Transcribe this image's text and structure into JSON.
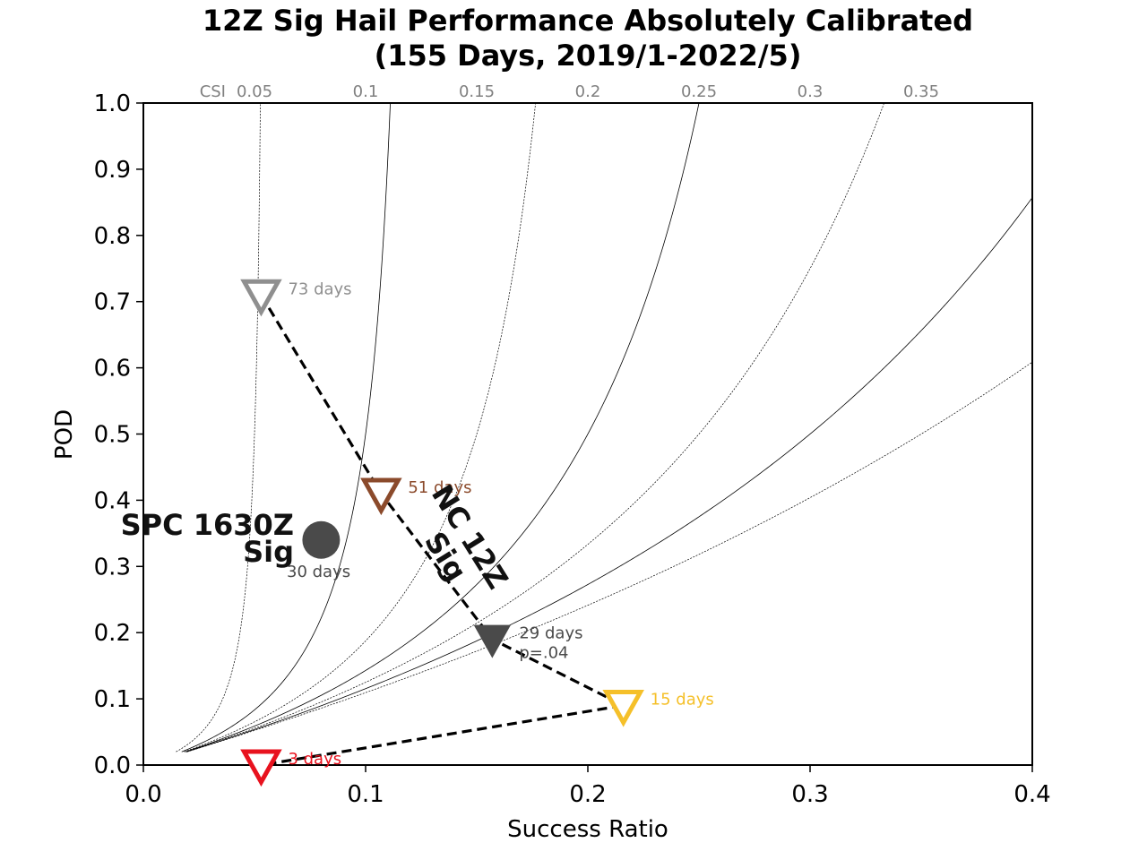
{
  "chart_data": {
    "type": "scatter",
    "title": "12Z Sig Hail Performance Absolutely Calibrated",
    "subtitle": "(155 Days, 2019/1-2022/5)",
    "xlabel": "Success Ratio",
    "ylabel": "POD",
    "xlim": [
      0.0,
      0.4
    ],
    "ylim": [
      0.0,
      1.0
    ],
    "x_ticks": [
      "0.0",
      "0.1",
      "0.2",
      "0.3",
      "0.4"
    ],
    "y_ticks": [
      "0.0",
      "0.1",
      "0.2",
      "0.3",
      "0.4",
      "0.5",
      "0.6",
      "0.7",
      "0.8",
      "0.9",
      "1.0"
    ],
    "csi_label": "CSI",
    "csi_values": [
      0.05,
      0.1,
      0.15,
      0.2,
      0.25,
      0.3,
      0.35
    ],
    "csi_tick_labels": [
      "0.05",
      "0.1",
      "0.15",
      "0.2",
      "0.25",
      "0.3",
      "0.35"
    ],
    "series": [
      {
        "name": "NC 12Z Sig",
        "style": "dashed",
        "color": "#000000",
        "points": [
          {
            "x": 0.053,
            "y": 0.71,
            "days_label": "73 days",
            "extra_label": "",
            "marker": "triangle-down-open",
            "color": "#8f8f8f"
          },
          {
            "x": 0.107,
            "y": 0.41,
            "days_label": "51 days",
            "extra_label": "",
            "marker": "triangle-down-open",
            "color": "#8b4a2b"
          },
          {
            "x": 0.157,
            "y": 0.19,
            "days_label": "29 days",
            "extra_label": "p=.04",
            "marker": "triangle-down-filled",
            "color": "#4a4a4a"
          },
          {
            "x": 0.216,
            "y": 0.09,
            "days_label": "15 days",
            "extra_label": "",
            "marker": "triangle-down-open",
            "color": "#f5c02a"
          },
          {
            "x": 0.053,
            "y": 0.0,
            "days_label": "3 days",
            "extra_label": "",
            "marker": "triangle-down-open",
            "color": "#e8121e"
          }
        ]
      }
    ],
    "spc_point": {
      "name": "SPC 1630Z Sig",
      "line1": "SPC 1630Z",
      "line2": "Sig",
      "x": 0.08,
      "y": 0.34,
      "days_label": "30 days",
      "color": "#4a4a4a"
    },
    "nc_curve_label": {
      "line1": "NC 12Z",
      "line2": "Sig"
    },
    "grid": false
  }
}
